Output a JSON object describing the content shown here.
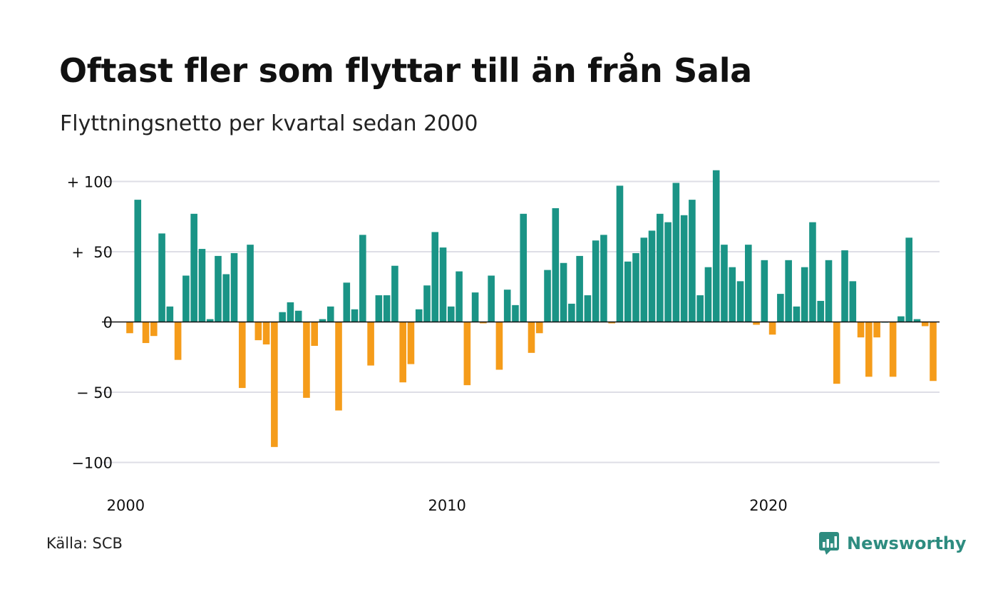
{
  "title": "Oftast fler som flyttar till än från Sala",
  "subtitle": "Flyttningsnetto per kvartal sedan 2000",
  "source": "Källa: SCB",
  "brand": {
    "name": "Newsworthy",
    "icon": "newsworthy-logo-icon",
    "color": "#2e8c80"
  },
  "colors": {
    "positive": "#1a9486",
    "negative": "#f59c1a",
    "grid": "#dedee6",
    "zero": "#111111",
    "text": "#111111"
  },
  "chart_data": {
    "type": "bar",
    "x_start": "2000-Q1",
    "x_end": "2025-Q1",
    "x_ticks": [
      "2000",
      "2010",
      "2020"
    ],
    "y_ticks": [
      {
        "value": 100,
        "label": "+ 100"
      },
      {
        "value": 50,
        "label": "+  50"
      },
      {
        "value": 0,
        "label": "0"
      },
      {
        "value": -50,
        "label": "− 50"
      },
      {
        "value": -100,
        "label": "−100"
      }
    ],
    "ylim": [
      -110,
      110
    ],
    "grid": true,
    "values": [
      -8,
      87,
      -15,
      -10,
      63,
      11,
      -27,
      33,
      77,
      52,
      2,
      47,
      34,
      49,
      -47,
      55,
      -13,
      -16,
      -89,
      7,
      14,
      8,
      -54,
      -17,
      2,
      11,
      -63,
      28,
      9,
      62,
      -31,
      19,
      19,
      40,
      -43,
      -30,
      9,
      26,
      64,
      53,
      11,
      36,
      -45,
      21,
      -1,
      33,
      -34,
      23,
      12,
      77,
      -22,
      -8,
      37,
      81,
      42,
      13,
      47,
      19,
      58,
      62,
      -1,
      97,
      43,
      49,
      60,
      65,
      77,
      71,
      99,
      76,
      87,
      19,
      39,
      108,
      55,
      39,
      29,
      55,
      -2,
      44,
      -9,
      20,
      44,
      11,
      39,
      71,
      15,
      44,
      -44,
      51,
      29,
      -11,
      -39,
      -11,
      0,
      -39,
      4,
      60,
      2,
      -3,
      -42
    ]
  }
}
